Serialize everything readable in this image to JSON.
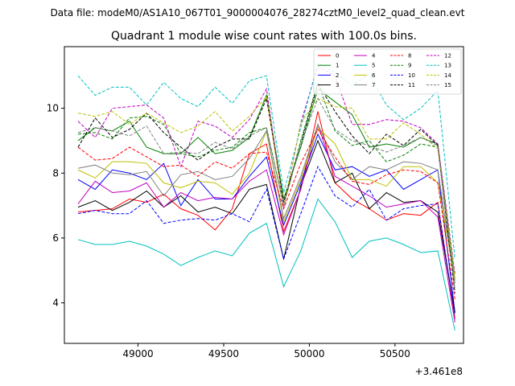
{
  "chart_data": {
    "type": "line",
    "suptitle": "Data file: modeM0/AS1A10_067T01_9000004076_28274cztM0_level2_quad_clean.evt",
    "title": "Quadrant 1 module wise count rates with 100.0s bins.",
    "xlabel": "",
    "ylabel": "",
    "x_offset_label": "+3.461e8",
    "xlim": [
      48570,
      50900
    ],
    "ylim": [
      2.75,
      11.9
    ],
    "xticks": [
      49000,
      49500,
      50000,
      50500
    ],
    "xtick_labels": [
      "49000",
      "49500",
      "50000",
      "50500"
    ],
    "yticks": [
      4,
      6,
      8,
      10
    ],
    "ytick_labels": [
      "4",
      "6",
      "8",
      "10"
    ],
    "legend_position": "top-right",
    "x": [
      48650,
      48750,
      48850,
      48950,
      49050,
      49150,
      49250,
      49350,
      49450,
      49550,
      49650,
      49750,
      49850,
      49950,
      50050,
      50150,
      50250,
      50350,
      50450,
      50550,
      50650,
      50750,
      50850
    ],
    "series": [
      {
        "name": "0",
        "color": "#ff0000",
        "dash": "solid",
        "values": [
          6.8,
          6.85,
          6.9,
          7.2,
          7.1,
          7.35,
          6.9,
          6.7,
          6.25,
          6.9,
          8.6,
          8.9,
          6.2,
          7.5,
          9.9,
          7.7,
          7.2,
          6.9,
          6.55,
          6.75,
          6.7,
          7.1,
          3.5
        ]
      },
      {
        "name": "1",
        "color": "#008000",
        "dash": "solid",
        "values": [
          9.0,
          9.4,
          9.3,
          9.6,
          8.8,
          8.6,
          8.6,
          9.1,
          8.6,
          8.7,
          9.1,
          10.4,
          7.2,
          8.8,
          10.6,
          10.2,
          9.8,
          8.8,
          8.9,
          8.8,
          9.1,
          8.9,
          4.7
        ]
      },
      {
        "name": "2",
        "color": "#0000ff",
        "dash": "solid",
        "values": [
          7.8,
          7.5,
          8.1,
          8.0,
          7.8,
          8.3,
          7.0,
          7.8,
          7.2,
          7.2,
          7.9,
          8.5,
          6.4,
          7.7,
          9.2,
          8.1,
          8.2,
          7.9,
          8.1,
          7.5,
          7.8,
          8.1,
          3.7
        ]
      },
      {
        "name": "3",
        "color": "#000000",
        "dash": "solid",
        "values": [
          6.95,
          7.15,
          6.85,
          7.1,
          7.45,
          6.95,
          7.3,
          6.8,
          6.95,
          6.75,
          7.5,
          7.65,
          5.35,
          7.6,
          9.0,
          7.7,
          8.0,
          6.9,
          7.4,
          7.1,
          7.15,
          6.8,
          3.7
        ]
      },
      {
        "name": "4",
        "color": "#bf00bf",
        "dash": "solid",
        "values": [
          7.05,
          7.75,
          7.4,
          7.45,
          7.7,
          6.95,
          7.4,
          7.15,
          7.25,
          7.2,
          7.75,
          8.1,
          6.1,
          7.5,
          9.5,
          7.9,
          7.6,
          7.3,
          6.95,
          7.05,
          7.15,
          6.65,
          3.4
        ]
      },
      {
        "name": "5",
        "color": "#00bfbf",
        "dash": "solid",
        "values": [
          5.95,
          5.8,
          5.8,
          5.9,
          5.75,
          5.5,
          5.15,
          5.4,
          5.6,
          5.45,
          6.15,
          6.45,
          4.5,
          5.6,
          7.2,
          6.5,
          5.4,
          5.9,
          6.0,
          5.8,
          5.55,
          5.6,
          3.15
        ]
      },
      {
        "name": "6",
        "color": "#bfbf00",
        "dash": "solid",
        "values": [
          8.1,
          7.85,
          8.35,
          8.35,
          8.3,
          7.7,
          7.55,
          7.75,
          7.7,
          7.35,
          8.0,
          9.3,
          6.5,
          7.8,
          9.4,
          8.9,
          7.8,
          7.8,
          7.6,
          8.2,
          8.2,
          7.7,
          4.7
        ]
      },
      {
        "name": "7",
        "color": "#808080",
        "dash": "solid",
        "values": [
          8.15,
          8.25,
          8.0,
          7.95,
          8.05,
          7.3,
          7.95,
          8.05,
          7.8,
          7.9,
          8.45,
          9.3,
          6.6,
          7.9,
          9.5,
          8.35,
          7.8,
          8.2,
          8.1,
          8.35,
          8.3,
          8.1,
          4.6
        ]
      },
      {
        "name": "8",
        "color": "#ff0000",
        "dash": "dashed",
        "values": [
          8.8,
          8.4,
          8.45,
          8.8,
          8.5,
          8.2,
          8.25,
          7.9,
          8.35,
          8.15,
          8.6,
          8.65,
          6.9,
          8.3,
          9.35,
          8.5,
          7.75,
          7.65,
          7.95,
          8.1,
          8.05,
          7.7,
          4.1
        ]
      },
      {
        "name": "9",
        "color": "#008000",
        "dash": "dashed",
        "values": [
          9.2,
          9.25,
          9.05,
          9.7,
          9.75,
          9.5,
          8.6,
          8.5,
          8.7,
          8.8,
          9.25,
          9.4,
          7.0,
          9.0,
          10.8,
          9.3,
          8.85,
          9.0,
          8.35,
          8.55,
          8.9,
          8.8,
          4.4
        ]
      },
      {
        "name": "10",
        "color": "#0000ff",
        "dash": "dashed",
        "values": [
          6.75,
          6.85,
          6.75,
          6.75,
          7.15,
          6.45,
          6.55,
          6.6,
          6.55,
          6.75,
          6.5,
          7.5,
          5.35,
          6.75,
          8.2,
          7.3,
          6.95,
          7.5,
          6.55,
          6.9,
          7.0,
          7.05,
          3.6
        ]
      },
      {
        "name": "11",
        "color": "#000000",
        "dash": "dashed",
        "values": [
          8.8,
          9.7,
          9.1,
          9.35,
          9.85,
          9.25,
          8.8,
          8.4,
          8.8,
          9.05,
          9.05,
          10.3,
          7.1,
          8.9,
          10.75,
          9.9,
          9.15,
          8.6,
          9.2,
          8.85,
          9.35,
          8.85,
          4.3
        ]
      },
      {
        "name": "12",
        "color": "#bf00bf",
        "dash": "dashed",
        "values": [
          9.6,
          9.1,
          10.0,
          10.05,
          10.1,
          9.7,
          8.2,
          9.6,
          9.45,
          9.1,
          9.65,
          10.6,
          6.9,
          9.55,
          11.3,
          11.0,
          9.5,
          9.5,
          9.65,
          9.6,
          9.4,
          8.9,
          4.9
        ]
      },
      {
        "name": "13",
        "color": "#00bfbf",
        "dash": "dashed",
        "values": [
          11.0,
          10.4,
          10.65,
          10.65,
          10.1,
          10.8,
          10.3,
          10.05,
          10.65,
          10.15,
          10.85,
          11.0,
          7.4,
          9.4,
          11.4,
          11.1,
          10.7,
          11.05,
          10.1,
          9.65,
          10.0,
          10.55,
          5.35
        ]
      },
      {
        "name": "14",
        "color": "#bfbf00",
        "dash": "dashed",
        "values": [
          9.85,
          9.75,
          9.9,
          9.5,
          9.85,
          9.55,
          9.25,
          9.45,
          9.9,
          9.3,
          9.75,
          10.35,
          6.95,
          9.55,
          10.3,
          10.05,
          10.0,
          9.05,
          9.05,
          9.55,
          9.2,
          8.75,
          4.8
        ]
      },
      {
        "name": "15",
        "color": "#808080",
        "dash": "dashed",
        "values": [
          9.25,
          9.4,
          9.3,
          9.15,
          9.45,
          8.6,
          8.65,
          8.6,
          8.95,
          8.75,
          9.15,
          9.4,
          7.0,
          8.9,
          10.3,
          9.35,
          9.0,
          8.85,
          8.65,
          8.85,
          9.1,
          8.85,
          4.4
        ]
      }
    ]
  }
}
